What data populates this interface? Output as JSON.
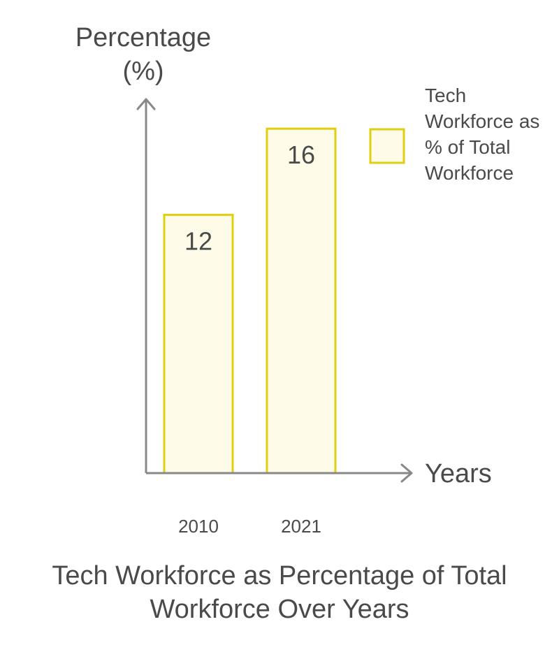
{
  "chart_data": {
    "type": "bar",
    "title": "Tech Workforce as Percentage of Total Workforce Over Years",
    "ylabel": "Percentage (%)",
    "xlabel": "Years",
    "categories": [
      "2010",
      "2021"
    ],
    "series": [
      {
        "name": "Tech Workforce as % of Total Workforce",
        "values": [
          12,
          16
        ]
      }
    ],
    "ylim": [
      0,
      20
    ],
    "grid": false,
    "legend": "top-right"
  },
  "colors": {
    "bar_fill": "#fefce8",
    "bar_stroke": "#e0cf10",
    "axis": "#888888",
    "text": "#4a4a4a"
  }
}
